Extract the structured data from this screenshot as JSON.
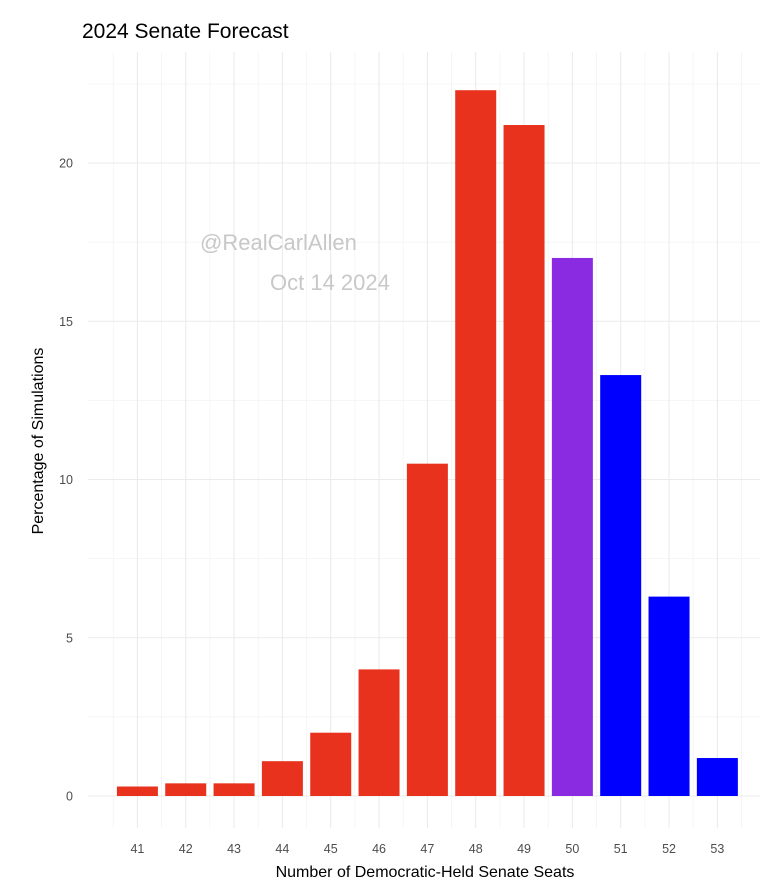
{
  "chart_data": {
    "type": "bar",
    "title": "2024 Senate Forecast",
    "xlabel": "Number of Democratic-Held Senate Seats",
    "ylabel": "Percentage of Simulations",
    "categories": [
      "41",
      "42",
      "43",
      "44",
      "45",
      "46",
      "47",
      "48",
      "49",
      "50",
      "51",
      "52",
      "53"
    ],
    "values": [
      0.3,
      0.4,
      0.4,
      1.1,
      2.0,
      4.0,
      10.5,
      22.3,
      21.2,
      17.0,
      13.3,
      6.3,
      1.2
    ],
    "colors": [
      "#e8321e",
      "#e8321e",
      "#e8321e",
      "#e8321e",
      "#e8321e",
      "#e8321e",
      "#e8321e",
      "#e8321e",
      "#e8321e",
      "#8a2be2",
      "#0000ff",
      "#0000ff",
      "#0000ff"
    ],
    "ylim": [
      0,
      22.5
    ],
    "yticks": [
      0,
      5,
      10,
      15,
      20
    ],
    "grid": true,
    "legend": "none",
    "watermark": [
      "@RealCarlAllen",
      "Oct 14 2024"
    ]
  }
}
